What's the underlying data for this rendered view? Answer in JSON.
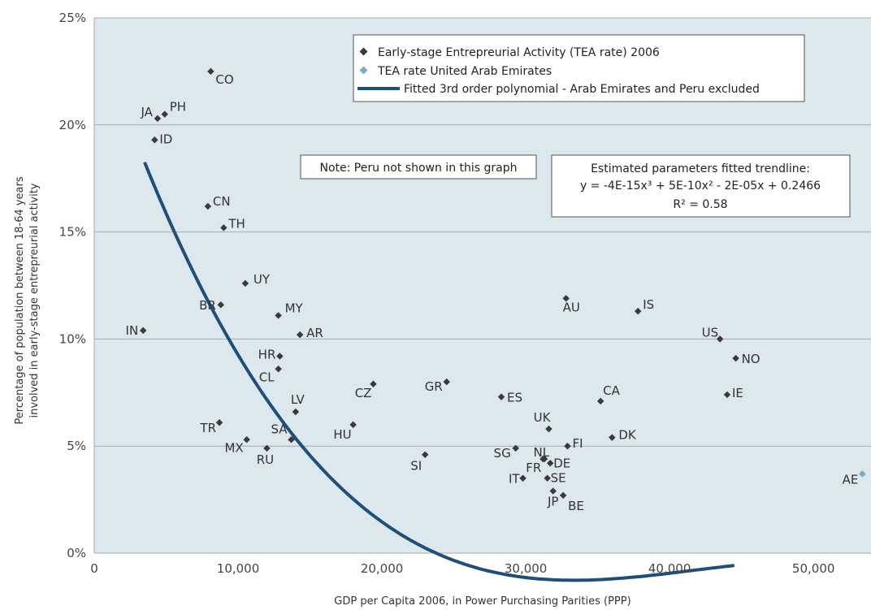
{
  "chart_data": {
    "type": "scatter",
    "xlabel": "GDP per Capita 2006, in Power Purchasing Parities (PPP)",
    "ylabel_lines": [
      "Percentage of population between 18-64 years",
      "involved in early-stage entrepreurial activity"
    ],
    "xlim": [
      0,
      54000
    ],
    "ylim": [
      0,
      0.25
    ],
    "x_ticks": [
      0,
      10000,
      20000,
      30000,
      40000,
      50000
    ],
    "x_tick_labels": [
      "0",
      "10,000",
      "20,000",
      "30,000",
      "40,000",
      "50,000"
    ],
    "y_ticks": [
      0,
      0.05,
      0.1,
      0.15,
      0.2,
      0.25
    ],
    "y_tick_labels": [
      "0%",
      "5%",
      "10%",
      "15%",
      "20%",
      "25%"
    ],
    "grid": "horizontal",
    "legend": {
      "placement": "top-center",
      "entries": [
        "Early-stage Entrepreurial Activity (TEA rate) 2006",
        "TEA rate United Arab Emirates",
        "Fitted 3rd order polynomial - Arab Emirates and Peru excluded"
      ]
    },
    "note": "Note: Peru not shown in this graph",
    "trendline_box": {
      "title": "Estimated parameters fitted trendline:",
      "equation": "y = -4E-15x³ + 5E-10x² - 2E-05x + 0.2466",
      "r2": "R² = 0.58"
    },
    "colors": {
      "plot_background": "#dce7ee",
      "point": "#3a3a3a",
      "highlight_point": "#7fa9c1",
      "trendline": "#1f4e79",
      "grid": "#a8a8a8"
    },
    "series": [
      {
        "name": "Early-stage Entrepreurial Activity (TEA rate) 2006",
        "points": [
          {
            "label": "CO",
            "x": 8100,
            "y": 0.225
          },
          {
            "label": "JA",
            "x": 4400,
            "y": 0.203
          },
          {
            "label": "PH",
            "x": 4900,
            "y": 0.205
          },
          {
            "label": "ID",
            "x": 4200,
            "y": 0.193
          },
          {
            "label": "CN",
            "x": 7900,
            "y": 0.162
          },
          {
            "label": "TH",
            "x": 9000,
            "y": 0.152
          },
          {
            "label": "UY",
            "x": 10500,
            "y": 0.126
          },
          {
            "label": "BR",
            "x": 8800,
            "y": 0.116
          },
          {
            "label": "MY",
            "x": 12800,
            "y": 0.111
          },
          {
            "label": "IN",
            "x": 3400,
            "y": 0.104
          },
          {
            "label": "AR",
            "x": 14300,
            "y": 0.102
          },
          {
            "label": "HR",
            "x": 12900,
            "y": 0.092
          },
          {
            "label": "CL",
            "x": 12800,
            "y": 0.086
          },
          {
            "label": "CZ",
            "x": 19400,
            "y": 0.079
          },
          {
            "label": "GR",
            "x": 24500,
            "y": 0.08
          },
          {
            "label": "ES",
            "x": 28300,
            "y": 0.073
          },
          {
            "label": "LV",
            "x": 14000,
            "y": 0.066
          },
          {
            "label": "TR",
            "x": 8700,
            "y": 0.061
          },
          {
            "label": "HU",
            "x": 18000,
            "y": 0.06
          },
          {
            "label": "SA",
            "x": 13700,
            "y": 0.053
          },
          {
            "label": "MX",
            "x": 10600,
            "y": 0.053
          },
          {
            "label": "RU",
            "x": 12000,
            "y": 0.049
          },
          {
            "label": "SI",
            "x": 23000,
            "y": 0.046
          },
          {
            "label": "SG",
            "x": 29300,
            "y": 0.049
          },
          {
            "label": "UK",
            "x": 31600,
            "y": 0.058
          },
          {
            "label": "FI",
            "x": 32900,
            "y": 0.05
          },
          {
            "label": "NL",
            "x": 31300,
            "y": 0.044
          },
          {
            "label": "FR",
            "x": 31200,
            "y": 0.044
          },
          {
            "label": "DE",
            "x": 31700,
            "y": 0.042
          },
          {
            "label": "IT",
            "x": 29800,
            "y": 0.035
          },
          {
            "label": "SE",
            "x": 31500,
            "y": 0.035
          },
          {
            "label": "JP",
            "x": 31900,
            "y": 0.029
          },
          {
            "label": "BE",
            "x": 32600,
            "y": 0.027
          },
          {
            "label": "CA",
            "x": 35200,
            "y": 0.071
          },
          {
            "label": "DK",
            "x": 36000,
            "y": 0.054
          },
          {
            "label": "AU",
            "x": 32800,
            "y": 0.119
          },
          {
            "label": "IS",
            "x": 37800,
            "y": 0.113
          },
          {
            "label": "US",
            "x": 43500,
            "y": 0.1
          },
          {
            "label": "NO",
            "x": 44600,
            "y": 0.091
          },
          {
            "label": "IE",
            "x": 44000,
            "y": 0.074
          }
        ]
      },
      {
        "name": "TEA rate United Arab Emirates",
        "points": [
          {
            "label": "AE",
            "x": 53400,
            "y": 0.037
          }
        ]
      }
    ],
    "trendline": {
      "name": "Fitted 3rd order polynomial - Arab Emirates and Peru excluded",
      "x_range": [
        3500,
        44500
      ],
      "coefficients": {
        "a3": -4e-15,
        "a2": 5e-10,
        "a1": -2e-05,
        "a0": 0.2466
      }
    }
  }
}
